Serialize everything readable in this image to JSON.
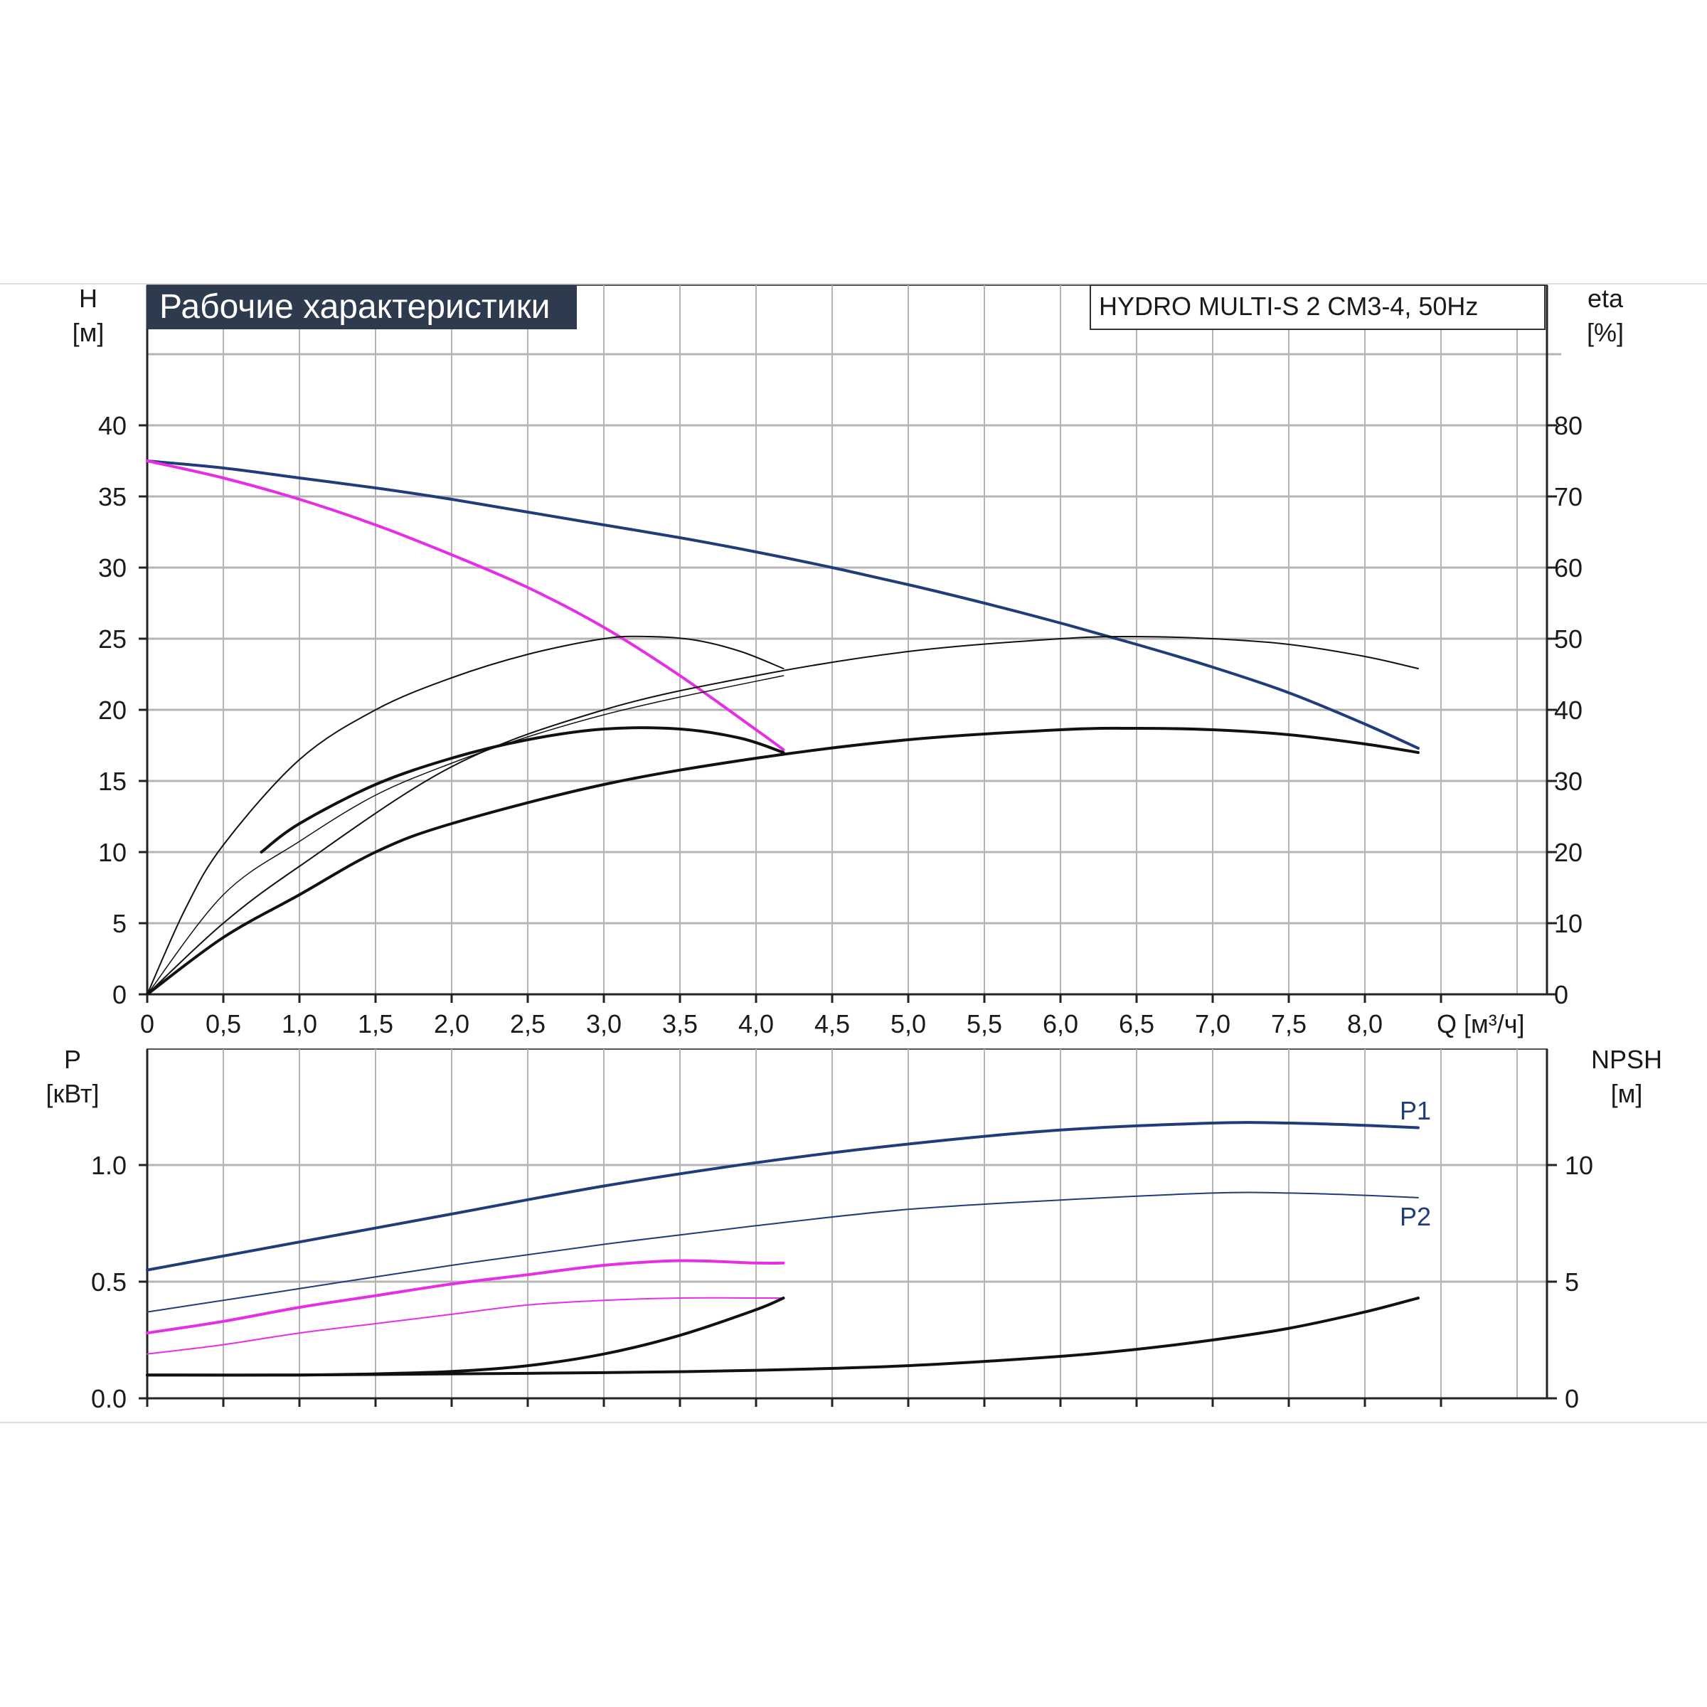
{
  "colors": {
    "grid": "#b4b4b4",
    "axis": "#222222",
    "blue": "#1f3d7a",
    "magenta": "#e62ee6",
    "black": "#111111",
    "title_bg": "#2e3b4e",
    "title_fg": "#ffffff"
  },
  "chart_data": [
    {
      "type": "line",
      "panel": "head",
      "title": "Рабочие характеристики",
      "model_label": "HYDRO MULTI-S 2 CM3-4, 50Hz",
      "ylabel": "H",
      "yunit": "[м]",
      "y2label": "eta",
      "y2unit": "[%]",
      "xlabel": "Q [м³/ч]",
      "xlim": [
        0,
        9.2
      ],
      "ylim": [
        0,
        45
      ],
      "y2lim": [
        0,
        90
      ],
      "xticks": [
        "0",
        "0,5",
        "1,0",
        "1,5",
        "2,0",
        "2,5",
        "3,0",
        "3,5",
        "4,0",
        "4,5",
        "5,0",
        "5,5",
        "6,0",
        "6,5",
        "7,0",
        "7,5",
        "8,0"
      ],
      "xtick_values": [
        0,
        0.5,
        1.0,
        1.5,
        2.0,
        2.5,
        3.0,
        3.5,
        4.0,
        4.5,
        5.0,
        5.5,
        6.0,
        6.5,
        7.0,
        7.5,
        8.0
      ],
      "yticks": [
        "0",
        "5",
        "10",
        "15",
        "20",
        "25",
        "30",
        "35",
        "40"
      ],
      "ytick_values": [
        0,
        5,
        10,
        15,
        20,
        25,
        30,
        35,
        40
      ],
      "y2ticks": [
        "0",
        "10",
        "20",
        "30",
        "40",
        "50",
        "60",
        "70",
        "80"
      ],
      "y2tick_values": [
        0,
        10,
        20,
        30,
        40,
        50,
        60,
        70,
        80
      ],
      "grid": true,
      "series": [
        {
          "color": "blue",
          "width": 4,
          "axis": "left",
          "x": [
            0,
            0.5,
            1.0,
            1.5,
            2.0,
            2.5,
            3.0,
            3.5,
            4.0,
            4.5,
            5.0,
            5.5,
            6.0,
            6.5,
            7.0,
            7.5,
            8.0,
            8.35
          ],
          "y": [
            37.5,
            37.0,
            36.3,
            35.6,
            34.8,
            33.9,
            33.0,
            32.1,
            31.1,
            30.0,
            28.8,
            27.5,
            26.1,
            24.6,
            23.0,
            21.2,
            19.0,
            17.3
          ]
        },
        {
          "color": "magenta",
          "width": 4,
          "axis": "left",
          "x": [
            0,
            0.5,
            1.0,
            1.5,
            2.0,
            2.5,
            3.0,
            3.5,
            4.0,
            4.18
          ],
          "y": [
            37.5,
            36.3,
            34.8,
            33.0,
            30.9,
            28.6,
            25.8,
            22.4,
            18.6,
            17.2
          ]
        },
        {
          "color": "black",
          "width": 2,
          "axis": "right",
          "x": [
            0,
            0.25,
            0.5,
            1.0,
            1.5,
            2.0,
            2.5,
            3.0,
            3.3,
            3.6,
            3.9,
            4.18
          ],
          "y": [
            0,
            12,
            21,
            33,
            40,
            44.5,
            47.8,
            50.0,
            50.3,
            49.8,
            48.2,
            45.8
          ]
        },
        {
          "color": "black",
          "width": 2,
          "axis": "right",
          "x": [
            0,
            0.5,
            1.0,
            2.0,
            3.0,
            4.0,
            5.0,
            6.0,
            6.5,
            7.0,
            7.5,
            8.0,
            8.35
          ],
          "y": [
            0,
            10,
            18,
            32,
            40,
            44.8,
            48.2,
            50.0,
            50.3,
            50.0,
            49.2,
            47.5,
            45.8
          ]
        },
        {
          "color": "black",
          "width": 4,
          "axis": "right",
          "x": [
            0.75,
            1.0,
            1.5,
            2.0,
            2.5,
            3.0,
            3.5,
            3.9,
            4.18
          ],
          "y": [
            20,
            24,
            29.5,
            33.2,
            35.8,
            37.3,
            37.3,
            36.0,
            34.0
          ]
        },
        {
          "color": "black",
          "width": 4,
          "axis": "right",
          "x": [
            0,
            0.5,
            1.0,
            1.5,
            2.0,
            3.0,
            4.0,
            5.0,
            6.0,
            6.5,
            7.0,
            7.5,
            8.0,
            8.35
          ],
          "y": [
            0,
            8,
            14,
            20,
            24,
            29.5,
            33.2,
            35.8,
            37.2,
            37.4,
            37.2,
            36.5,
            35.2,
            34.0
          ]
        },
        {
          "color": "black",
          "width": 1.5,
          "axis": "right",
          "x": [
            0,
            0.5,
            1.0,
            1.5,
            2.0,
            2.5,
            3.0,
            3.5,
            4.18
          ],
          "y": [
            0,
            14,
            21.5,
            28,
            32.5,
            36.2,
            39.3,
            41.8,
            44.8
          ]
        }
      ]
    },
    {
      "type": "line",
      "panel": "power",
      "ylabel": "P",
      "yunit": "[кВт]",
      "y2label": "NPSH",
      "y2unit": "[м]",
      "xlim": [
        0,
        9.2
      ],
      "ylim": [
        0,
        1.5
      ],
      "y2lim": [
        0,
        15
      ],
      "yticks": [
        "0.0",
        "0.5",
        "1.0"
      ],
      "ytick_values": [
        0,
        0.5,
        1.0
      ],
      "y2ticks": [
        "0",
        "5",
        "10"
      ],
      "y2tick_values": [
        0,
        5,
        10
      ],
      "grid": true,
      "labels": {
        "p1": "P1",
        "p2": "P2"
      },
      "series": [
        {
          "name": "P1",
          "color": "blue",
          "width": 4,
          "axis": "left",
          "x": [
            0,
            1,
            2,
            3,
            4,
            5,
            6,
            7,
            7.5,
            8,
            8.35
          ],
          "y": [
            0.55,
            0.67,
            0.79,
            0.91,
            1.01,
            1.09,
            1.15,
            1.18,
            1.18,
            1.17,
            1.16
          ]
        },
        {
          "name": "P2",
          "color": "blue",
          "width": 2,
          "axis": "left",
          "x": [
            0,
            1,
            2,
            3,
            4,
            5,
            6,
            7,
            7.5,
            8,
            8.35
          ],
          "y": [
            0.37,
            0.47,
            0.57,
            0.66,
            0.74,
            0.81,
            0.85,
            0.88,
            0.88,
            0.87,
            0.86
          ]
        },
        {
          "color": "magenta",
          "width": 4,
          "axis": "left",
          "x": [
            0,
            0.5,
            1,
            1.5,
            2,
            2.5,
            3,
            3.5,
            4,
            4.18
          ],
          "y": [
            0.28,
            0.33,
            0.39,
            0.44,
            0.49,
            0.53,
            0.57,
            0.59,
            0.58,
            0.58
          ]
        },
        {
          "color": "magenta",
          "width": 2,
          "axis": "left",
          "x": [
            0,
            0.5,
            1,
            1.5,
            2,
            2.5,
            3,
            3.5,
            4,
            4.18
          ],
          "y": [
            0.19,
            0.23,
            0.28,
            0.32,
            0.36,
            0.4,
            0.42,
            0.43,
            0.43,
            0.43
          ]
        },
        {
          "color": "black",
          "width": 4,
          "axis": "right",
          "x": [
            0,
            1,
            1.5,
            2,
            2.5,
            3,
            3.5,
            4,
            4.18
          ],
          "y": [
            1.0,
            1.0,
            1.05,
            1.15,
            1.4,
            1.9,
            2.7,
            3.8,
            4.3
          ]
        },
        {
          "color": "black",
          "width": 4,
          "axis": "right",
          "x": [
            0,
            1,
            2,
            3,
            4,
            5,
            6,
            6.5,
            7,
            7.5,
            8,
            8.35
          ],
          "y": [
            1.0,
            1.0,
            1.05,
            1.1,
            1.2,
            1.4,
            1.8,
            2.1,
            2.5,
            3.0,
            3.7,
            4.3
          ]
        }
      ]
    }
  ]
}
